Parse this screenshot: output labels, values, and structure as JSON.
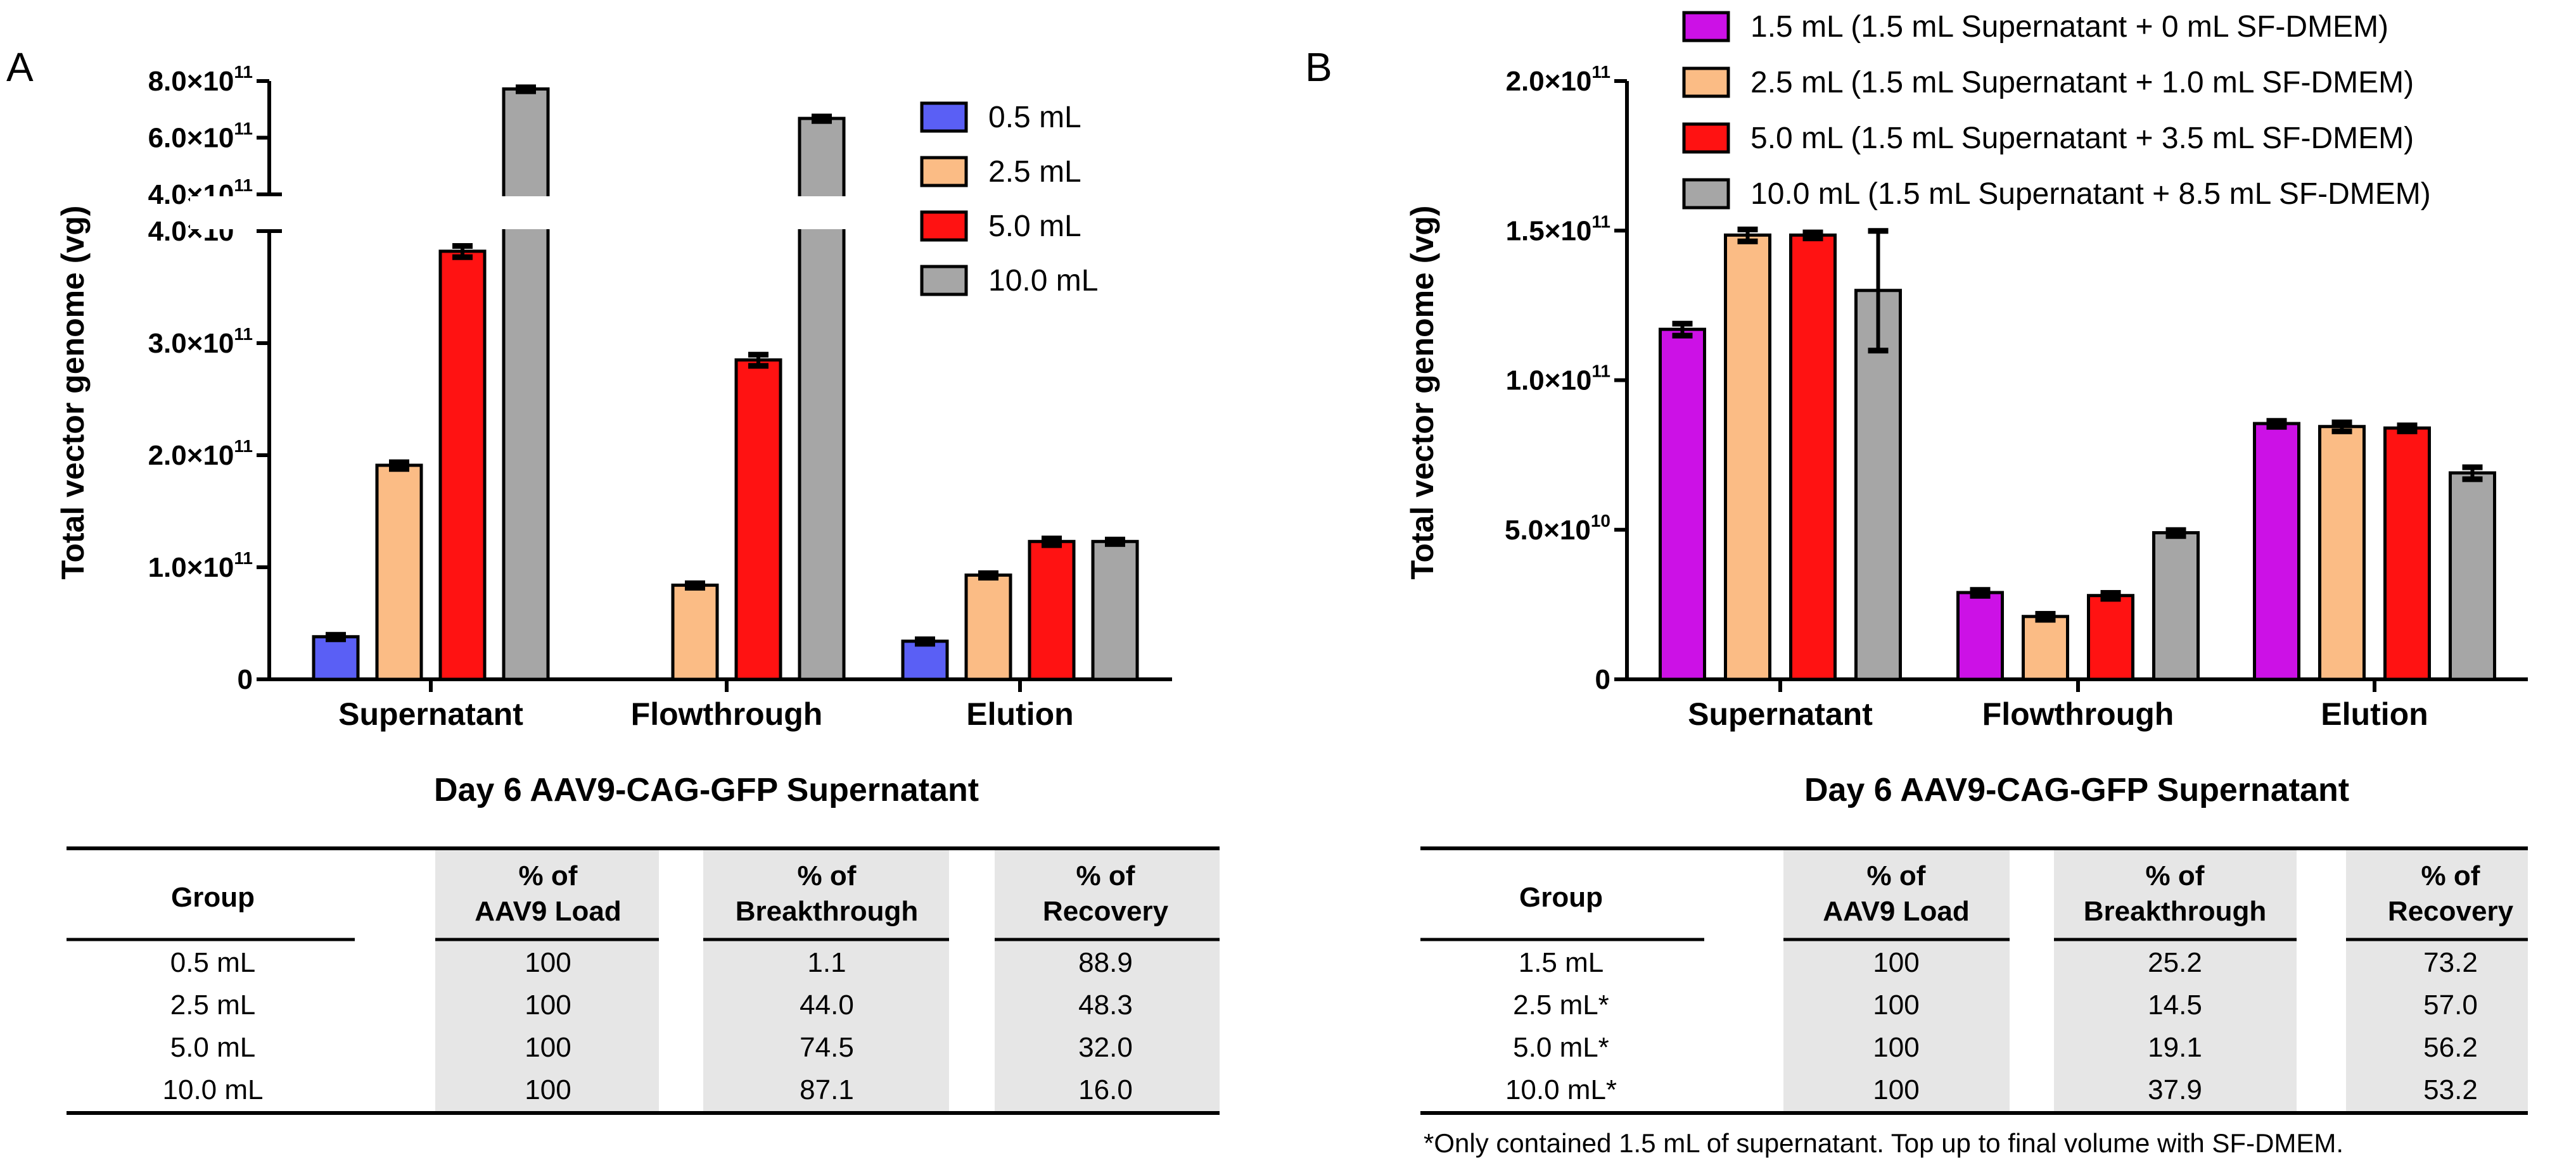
{
  "panels": {
    "A": {
      "label": "A",
      "subtitle": "Day 6 AAV9-CAG-GFP Supernatant"
    },
    "B": {
      "label": "B",
      "subtitle": "Day 6 AAV9-CAG-GFP Supernatant"
    }
  },
  "colors": {
    "blue": "#5a5ff5",
    "orange": "#fbbc85",
    "red": "#ff1212",
    "gray": "#a6a6a6",
    "purple": "#cc11e6"
  },
  "chart_data": [
    {
      "panel": "A",
      "type": "bar",
      "ylabel": "Total vector genome (vg)",
      "categories": [
        "Supernatant",
        "Flowthrough",
        "Elution"
      ],
      "y_axis_break": {
        "lower_range": [
          0,
          400000000000.0
        ],
        "upper_range": [
          400000000000.0,
          800000000000.0
        ]
      },
      "yticks_lower": [
        {
          "value": 0,
          "mant": "0",
          "base": "",
          "exp": ""
        },
        {
          "value": 100000000000.0,
          "mant": "1.0",
          "base": "×10",
          "exp": "11"
        },
        {
          "value": 200000000000.0,
          "mant": "2.0",
          "base": "×10",
          "exp": "11"
        },
        {
          "value": 300000000000.0,
          "mant": "3.0",
          "base": "×10",
          "exp": "11"
        },
        {
          "value": 400000000000.0,
          "mant": "4.0",
          "base": "×10",
          "exp": "11"
        }
      ],
      "yticks_upper": [
        {
          "value": 400000000000.0,
          "mant": "4.0",
          "base": "×10",
          "exp": "11"
        },
        {
          "value": 600000000000.0,
          "mant": "6.0",
          "base": "×10",
          "exp": "11"
        },
        {
          "value": 800000000000.0,
          "mant": "8.0",
          "base": "×10",
          "exp": "11"
        }
      ],
      "series": [
        {
          "name": "0.5 mL",
          "color": "#5a5ff5",
          "values": [
            38000000000.0,
            0,
            34000000000.0
          ],
          "errors": [
            2000000000.0,
            0,
            2000000000.0
          ]
        },
        {
          "name": "2.5 mL",
          "color": "#fbbc85",
          "values": [
            191000000000.0,
            84000000000.0,
            93000000000.0
          ],
          "errors": [
            3000000000.0,
            2000000000.0,
            2000000000.0
          ]
        },
        {
          "name": "5.0 mL",
          "color": "#ff1212",
          "values": [
            382000000000.0,
            285000000000.0,
            123000000000.0
          ],
          "errors": [
            5000000000.0,
            5000000000.0,
            3000000000.0
          ]
        },
        {
          "name": "10.0 mL",
          "color": "#a6a6a6",
          "values": [
            772000000000.0,
            668000000000.0,
            123000000000.0
          ],
          "errors": [
            7000000000.0,
            8000000000.0,
            2000000000.0
          ]
        }
      ]
    },
    {
      "panel": "B",
      "type": "bar",
      "ylabel": "Total vector genome (vg)",
      "categories": [
        "Supernatant",
        "Flowthrough",
        "Elution"
      ],
      "ylim": [
        0,
        200000000000.0
      ],
      "yticks": [
        {
          "value": 0,
          "mant": "0",
          "base": "",
          "exp": ""
        },
        {
          "value": 50000000000.0,
          "mant": "5.0",
          "base": "×10",
          "exp": "10"
        },
        {
          "value": 100000000000.0,
          "mant": "1.0",
          "base": "×10",
          "exp": "11"
        },
        {
          "value": 150000000000.0,
          "mant": "1.5",
          "base": "×10",
          "exp": "11"
        },
        {
          "value": 200000000000.0,
          "mant": "2.0",
          "base": "×10",
          "exp": "11"
        }
      ],
      "series": [
        {
          "name": "1.5 mL (1.5 mL Supernatant + 0 mL SF-DMEM)",
          "color": "#cc11e6",
          "values": [
            117000000000.0,
            29000000000.0,
            85500000000.0
          ],
          "errors": [
            2000000000.0,
            1000000000.0,
            1000000000.0
          ]
        },
        {
          "name": "2.5 mL (1.5 mL Supernatant + 1.0 mL SF-DMEM)",
          "color": "#fbbc85",
          "values": [
            148500000000.0,
            21000000000.0,
            84500000000.0
          ],
          "errors": [
            2000000000.0,
            1000000000.0,
            1500000000.0
          ]
        },
        {
          "name": "5.0 mL (1.5 mL Supernatant + 3.5 mL SF-DMEM)",
          "color": "#ff1212",
          "values": [
            148500000000.0,
            28000000000.0,
            84000000000.0
          ],
          "errors": [
            1000000000.0,
            1000000000.0,
            1000000000.0
          ]
        },
        {
          "name": "10.0 mL (1.5 mL Supernatant + 8.5 mL SF-DMEM)",
          "color": "#a6a6a6",
          "values": [
            130000000000.0,
            49000000000.0,
            69000000000.0
          ],
          "errors": [
            20000000000.0,
            1000000000.0,
            2000000000.0
          ]
        }
      ]
    }
  ],
  "tables": {
    "A": {
      "headers": [
        [
          "Group"
        ],
        [
          "% of",
          "AAV9 Load"
        ],
        [
          "% of",
          "Breakthrough"
        ],
        [
          "% of",
          "Recovery"
        ]
      ],
      "rows": [
        [
          "0.5 mL",
          "100",
          "1.1",
          "88.9"
        ],
        [
          "2.5 mL",
          "100",
          "44.0",
          "48.3"
        ],
        [
          "5.0 mL",
          "100",
          "74.5",
          "32.0"
        ],
        [
          "10.0 mL",
          "100",
          "87.1",
          "16.0"
        ]
      ]
    },
    "B": {
      "headers": [
        [
          "Group"
        ],
        [
          "% of",
          "AAV9 Load"
        ],
        [
          "% of",
          "Breakthrough"
        ],
        [
          "% of",
          "Recovery"
        ]
      ],
      "rows": [
        [
          "1.5 mL",
          "100",
          "25.2",
          "73.2"
        ],
        [
          "2.5 mL*",
          "100",
          "14.5",
          "57.0"
        ],
        [
          "5.0 mL*",
          "100",
          "19.1",
          "56.2"
        ],
        [
          "10.0 mL*",
          "100",
          "37.9",
          "53.2"
        ]
      ],
      "footnote": "*Only contained 1.5 mL of supernatant. Top up to final volume with SF-DMEM."
    }
  }
}
